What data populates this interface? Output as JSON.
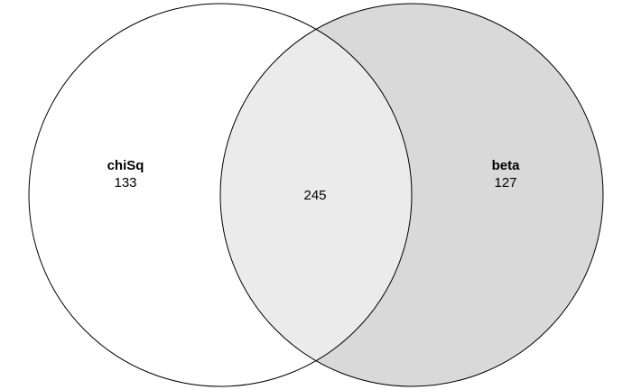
{
  "diagram": {
    "type": "venn",
    "sets": [
      {
        "name": "chiSq",
        "only_count": "133",
        "fill": "#ffffff"
      },
      {
        "name": "beta",
        "only_count": "127",
        "fill": "#d9d9d9"
      }
    ],
    "intersection": {
      "count": "245",
      "fill": "#ebebeb"
    },
    "stroke": "#000000"
  }
}
